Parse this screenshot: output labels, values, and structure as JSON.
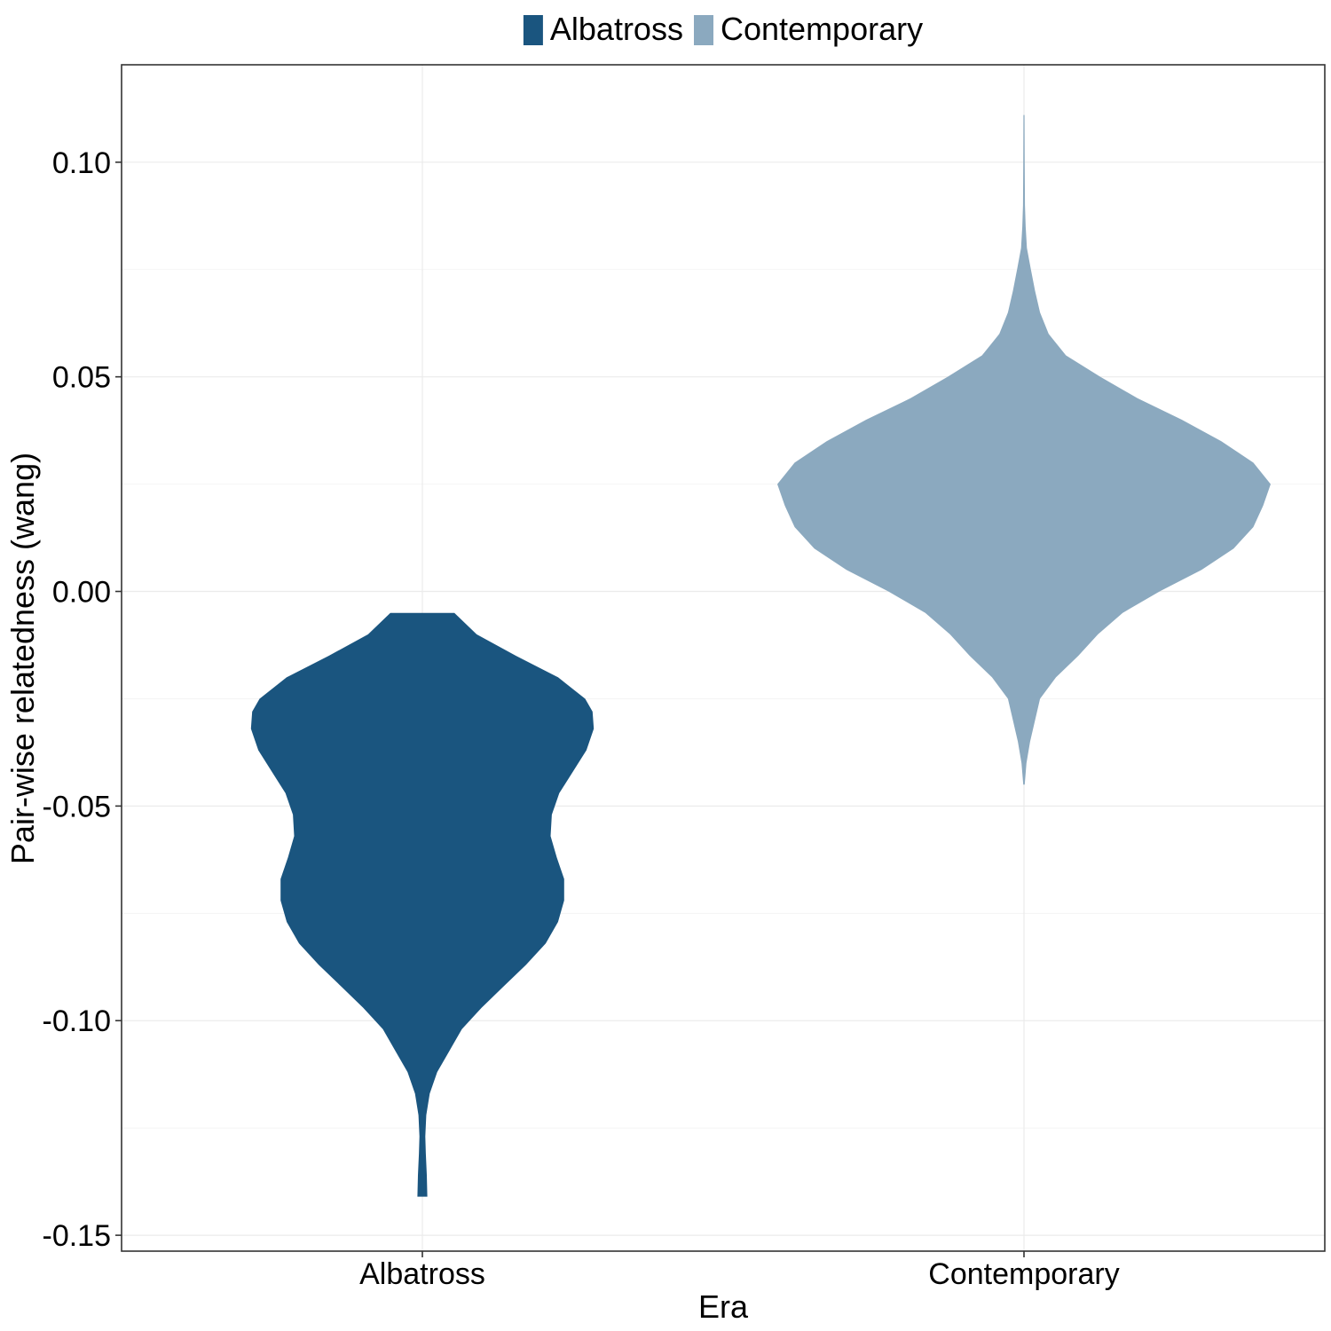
{
  "chart_data": {
    "type": "violin",
    "xlabel": "Era",
    "ylabel": "Pair-wise relatedness (wang)",
    "ylim": [
      -0.1537,
      0.1227
    ],
    "y_ticks": [
      0.1,
      0.05,
      0.0,
      -0.05,
      -0.1,
      -0.15
    ],
    "y_tick_labels": [
      "0.10",
      "0.05",
      "0.00",
      "-0.05",
      "-0.10",
      "-0.15"
    ],
    "categories": [
      "Albatross",
      "Contemporary"
    ],
    "grid": true,
    "legend": {
      "position": "top",
      "entries": [
        {
          "label": "Albatross",
          "color": "#1a557f"
        },
        {
          "label": "Contemporary",
          "color": "#8ba9bf"
        }
      ]
    },
    "series": [
      {
        "name": "Albatross",
        "color": "#1a557f",
        "y_min": -0.141,
        "y_max": -0.005,
        "density_profile": [
          [
            -0.141,
            0.02
          ],
          [
            -0.136,
            0.018
          ],
          [
            -0.131,
            0.014
          ],
          [
            -0.127,
            0.012
          ],
          [
            -0.122,
            0.016
          ],
          [
            -0.117,
            0.03
          ],
          [
            -0.112,
            0.06
          ],
          [
            -0.107,
            0.11
          ],
          [
            -0.102,
            0.16
          ],
          [
            -0.097,
            0.24
          ],
          [
            -0.092,
            0.33
          ],
          [
            -0.087,
            0.42
          ],
          [
            -0.082,
            0.5
          ],
          [
            -0.077,
            0.55
          ],
          [
            -0.072,
            0.575
          ],
          [
            -0.067,
            0.575
          ],
          [
            -0.062,
            0.545
          ],
          [
            -0.057,
            0.52
          ],
          [
            -0.052,
            0.525
          ],
          [
            -0.047,
            0.555
          ],
          [
            -0.042,
            0.61
          ],
          [
            -0.037,
            0.665
          ],
          [
            -0.032,
            0.695
          ],
          [
            -0.028,
            0.69
          ],
          [
            -0.025,
            0.66
          ],
          [
            -0.02,
            0.55
          ],
          [
            -0.015,
            0.38
          ],
          [
            -0.01,
            0.22
          ],
          [
            -0.005,
            0.13
          ]
        ]
      },
      {
        "name": "Contemporary",
        "color": "#8ba9bf",
        "y_min": -0.045,
        "y_max": 0.111,
        "density_profile": [
          [
            -0.045,
            0.003
          ],
          [
            -0.04,
            0.01
          ],
          [
            -0.035,
            0.025
          ],
          [
            -0.03,
            0.045
          ],
          [
            -0.025,
            0.065
          ],
          [
            -0.02,
            0.13
          ],
          [
            -0.015,
            0.22
          ],
          [
            -0.01,
            0.3
          ],
          [
            -0.005,
            0.4
          ],
          [
            0.0,
            0.55
          ],
          [
            0.005,
            0.72
          ],
          [
            0.01,
            0.85
          ],
          [
            0.015,
            0.93
          ],
          [
            0.02,
            0.97
          ],
          [
            0.025,
            1.0
          ],
          [
            0.03,
            0.93
          ],
          [
            0.035,
            0.8
          ],
          [
            0.04,
            0.64
          ],
          [
            0.045,
            0.46
          ],
          [
            0.05,
            0.31
          ],
          [
            0.055,
            0.17
          ],
          [
            0.06,
            0.1
          ],
          [
            0.065,
            0.065
          ],
          [
            0.07,
            0.045
          ],
          [
            0.075,
            0.028
          ],
          [
            0.08,
            0.012
          ],
          [
            0.085,
            0.007
          ],
          [
            0.09,
            0.004
          ],
          [
            0.1,
            0.003
          ],
          [
            0.111,
            0.002
          ]
        ]
      }
    ]
  }
}
